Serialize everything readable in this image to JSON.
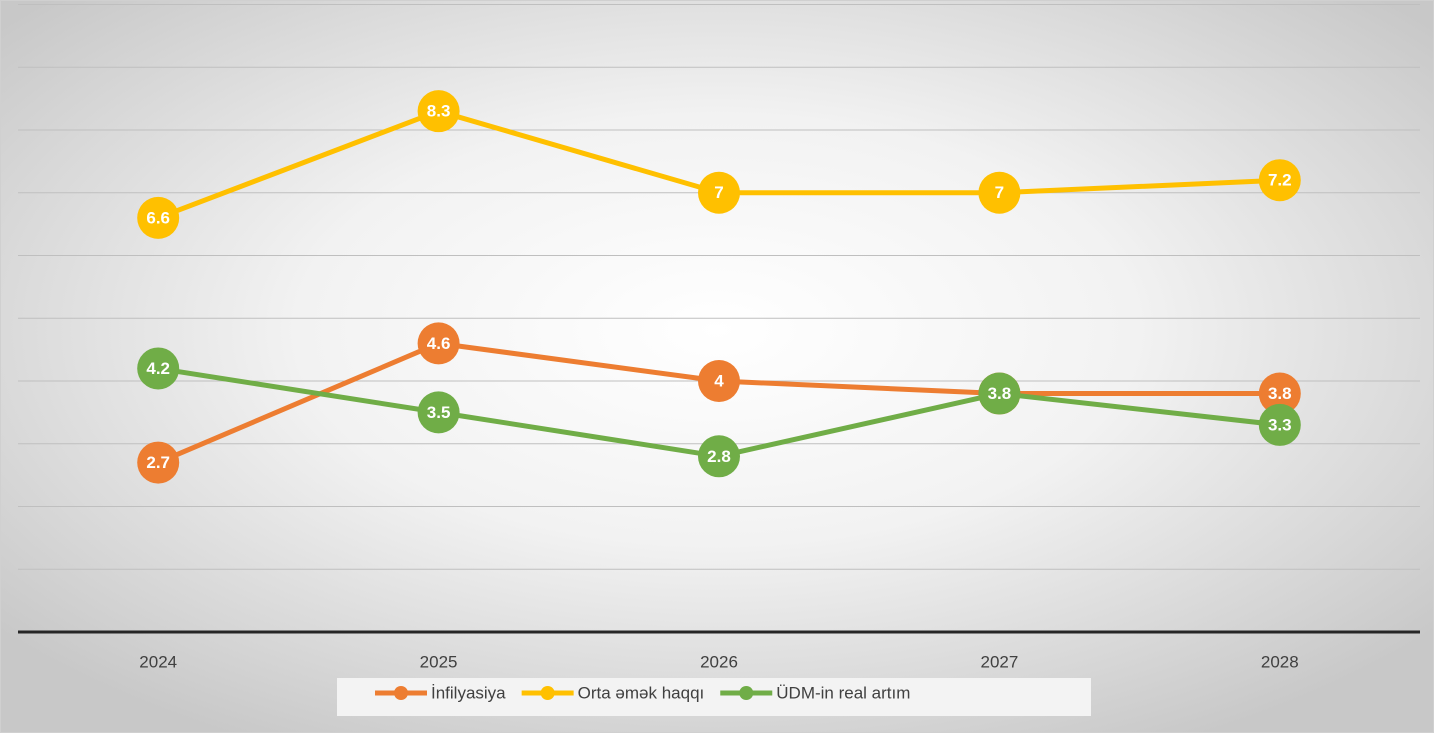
{
  "chart_data": {
    "type": "line",
    "categories": [
      "2024",
      "2025",
      "2026",
      "2027",
      "2028"
    ],
    "series": [
      {
        "name": "İnfilyasiya",
        "color": "#ED7D31",
        "values": [
          2.7,
          4.6,
          4,
          3.8,
          3.8
        ]
      },
      {
        "name": "Orta əmək haqqı",
        "color": "#FFC000",
        "values": [
          6.6,
          8.3,
          7,
          7,
          7.2
        ]
      },
      {
        "name": "ÜDM-in real artım",
        "color": "#70AD47",
        "values": [
          4.2,
          3.5,
          2.8,
          3.8,
          3.3
        ]
      }
    ],
    "ylim": [
      0,
      10
    ],
    "yticks": [
      0,
      1,
      2,
      3,
      4,
      5,
      6,
      7,
      8,
      9,
      10
    ],
    "grid": true,
    "legend": "bottom"
  }
}
